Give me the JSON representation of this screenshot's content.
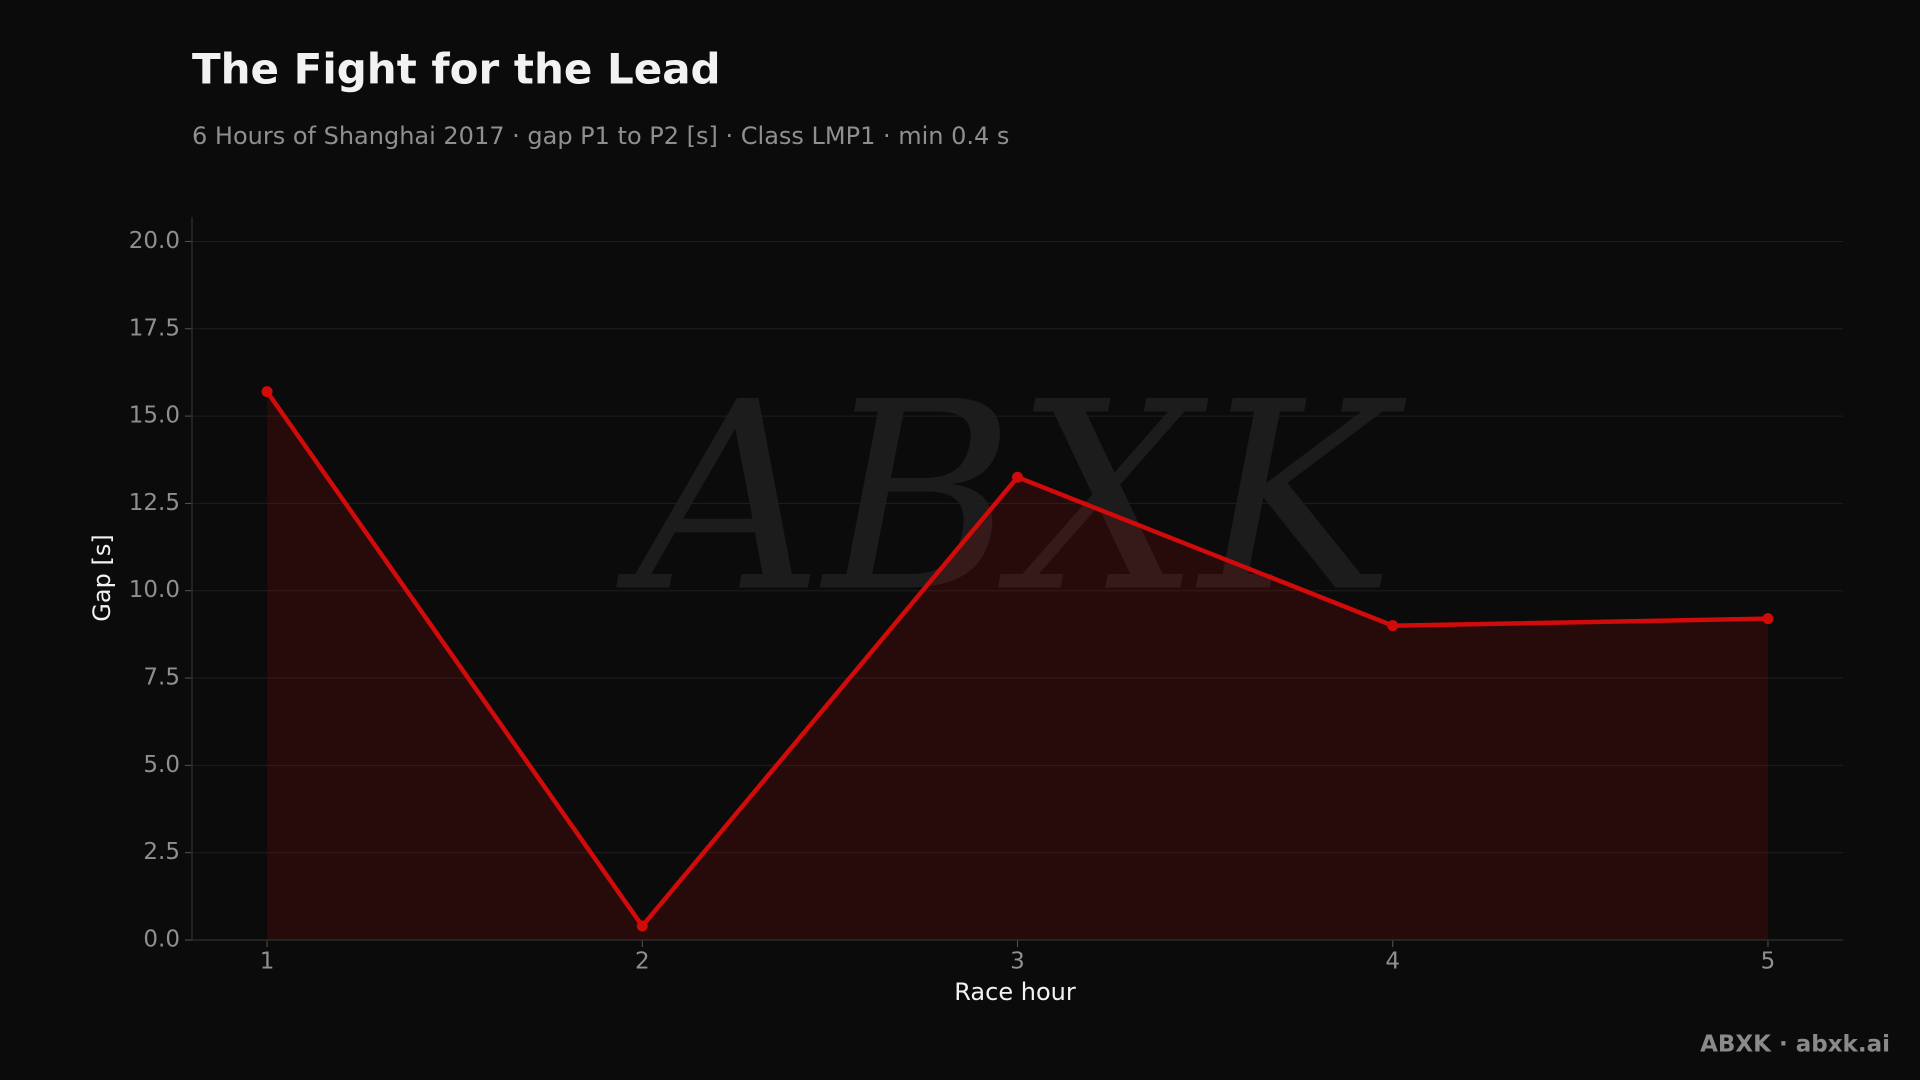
{
  "chart_data": {
    "type": "line",
    "title": "The Fight for the Lead",
    "subtitle": "6 Hours of Shanghai 2017 · gap P1 to P2 [s] · Class LMP1 · min 0.4 s",
    "x_label": "Race hour",
    "y_label": "Gap [s]",
    "x": [
      1,
      2,
      3,
      4,
      5
    ],
    "series": [
      {
        "name": "Gap P1 to P2",
        "color": "#d10a0a",
        "values": [
          15.7,
          0.4,
          13.25,
          9.0,
          9.2
        ]
      }
    ],
    "xlim": [
      0.8,
      5.2
    ],
    "xticks": [
      1,
      2,
      3,
      4,
      5
    ],
    "ylim": [
      0,
      20.7
    ],
    "yticks": [
      {
        "value": 0,
        "label": "0.0"
      },
      {
        "value": 2.5,
        "label": "2.5"
      },
      {
        "value": 5,
        "label": "5.0"
      },
      {
        "value": 7.5,
        "label": "7.5"
      },
      {
        "value": 10,
        "label": "10.0"
      },
      {
        "value": 12.5,
        "label": "12.5"
      },
      {
        "value": 15,
        "label": "15.0"
      },
      {
        "value": 17.5,
        "label": "17.5"
      },
      {
        "value": 20,
        "label": "20.0"
      }
    ],
    "grid": true,
    "area_fill": true,
    "watermark": "ABXK",
    "credit": "ABXK · abxk.ai"
  }
}
